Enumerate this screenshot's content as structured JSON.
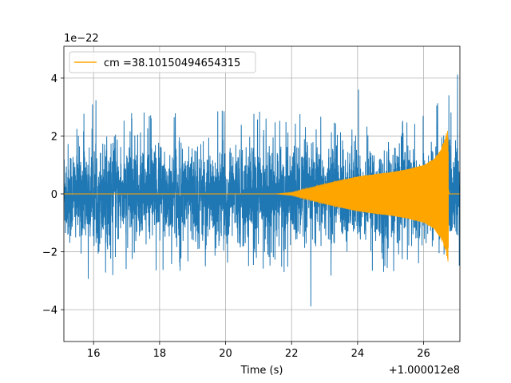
{
  "chart_data": {
    "type": "line",
    "title": "",
    "xlabel": "Time (s)",
    "ylabel": "",
    "x_offset_label": "+1.000012e8",
    "y_scale_label": "1e−22",
    "xlim": [
      15.1,
      27.1
    ],
    "ylim": [
      -5.1,
      5.1
    ],
    "x_ticks": [
      16,
      18,
      20,
      22,
      24,
      26
    ],
    "x_tick_labels": [
      "16",
      "18",
      "20",
      "22",
      "24",
      "26"
    ],
    "y_ticks": [
      -4,
      -2,
      0,
      2,
      4
    ],
    "y_tick_labels": [
      "−4",
      "−2",
      "0",
      "2",
      "4"
    ],
    "grid": true,
    "legend_position": "upper-left",
    "colors": {
      "noise": "#1f77b4",
      "template": "#ffa500"
    },
    "series": [
      {
        "name": "",
        "role": "noise",
        "color": "#1f77b4",
        "description": "dense noisy strain data",
        "x_range": [
          15.1,
          27.1
        ],
        "envelope": {
          "x": [
            15.1,
            15.5,
            16.0,
            16.5,
            17.0,
            17.5,
            18.0,
            18.5,
            19.0,
            19.5,
            20.0,
            20.5,
            21.0,
            21.5,
            22.0,
            22.5,
            23.0,
            23.5,
            24.0,
            24.5,
            25.0,
            25.5,
            26.0,
            26.5,
            27.1
          ],
          "max": [
            2.9,
            2.8,
            3.4,
            2.8,
            2.9,
            3.1,
            2.7,
            2.8,
            2.8,
            2.8,
            2.9,
            2.6,
            3.0,
            2.7,
            2.6,
            3.0,
            2.6,
            2.7,
            4.3,
            3.2,
            2.6,
            2.5,
            2.7,
            3.4,
            4.6
          ],
          "min": [
            -3.3,
            -2.9,
            -3.6,
            -2.8,
            -2.9,
            -3.1,
            -3.0,
            -2.8,
            -2.7,
            -2.9,
            -2.7,
            -2.8,
            -2.8,
            -2.9,
            -2.8,
            -4.6,
            -3.0,
            -2.8,
            -3.3,
            -2.7,
            -2.9,
            -2.9,
            -2.9,
            -2.9,
            -2.8
          ]
        }
      },
      {
        "name": "cm =38.10150494654315",
        "role": "template",
        "color": "#ffa500",
        "description": "inspiral chirp template",
        "x_range": [
          15.1,
          27.1
        ],
        "start_time": 21.5,
        "peak_time": 26.75,
        "envelope_points": {
          "x": [
            21.5,
            22.0,
            22.5,
            23.0,
            23.5,
            24.0,
            24.5,
            25.0,
            25.5,
            26.0,
            26.3,
            26.5,
            26.65,
            26.75
          ],
          "amp": [
            0.0,
            0.05,
            0.2,
            0.35,
            0.48,
            0.6,
            0.68,
            0.75,
            0.85,
            1.0,
            1.2,
            1.5,
            1.9,
            2.4
          ]
        }
      }
    ]
  }
}
